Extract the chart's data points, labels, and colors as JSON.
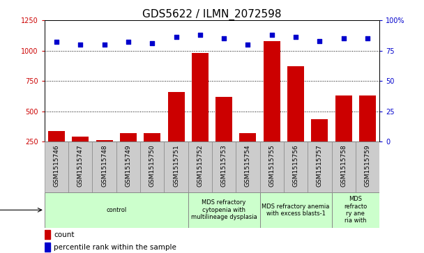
{
  "title": "GDS5622 / ILMN_2072598",
  "samples": [
    "GSM1515746",
    "GSM1515747",
    "GSM1515748",
    "GSM1515749",
    "GSM1515750",
    "GSM1515751",
    "GSM1515752",
    "GSM1515753",
    "GSM1515754",
    "GSM1515755",
    "GSM1515756",
    "GSM1515757",
    "GSM1515758",
    "GSM1515759"
  ],
  "counts": [
    340,
    290,
    265,
    320,
    320,
    660,
    980,
    620,
    320,
    1080,
    870,
    435,
    630,
    630
  ],
  "percentiles": [
    82,
    80,
    80,
    82,
    81,
    86,
    88,
    85,
    80,
    88,
    86,
    83,
    85,
    85
  ],
  "ylim_left": [
    250,
    1250
  ],
  "ylim_right": [
    0,
    100
  ],
  "yticks_left": [
    250,
    500,
    750,
    1000,
    1250
  ],
  "yticks_right": [
    0,
    25,
    50,
    75,
    100
  ],
  "bar_color": "#cc0000",
  "scatter_color": "#0000cc",
  "sample_bg_color": "#cccccc",
  "disease_groups": [
    {
      "label": "control",
      "start": 0,
      "end": 6,
      "color": "#ccffcc"
    },
    {
      "label": "MDS refractory\ncytopenia with\nmultilineage dysplasia",
      "start": 6,
      "end": 9,
      "color": "#ccffcc"
    },
    {
      "label": "MDS refractory anemia\nwith excess blasts-1",
      "start": 9,
      "end": 12,
      "color": "#ccffcc"
    },
    {
      "label": "MDS\nrefracto\nry ane\nria with",
      "start": 12,
      "end": 14,
      "color": "#ccffcc"
    }
  ],
  "title_fontsize": 11,
  "tick_fontsize": 7,
  "legend_fontsize": 7.5,
  "disease_label_fontsize": 6.0,
  "sample_label_fontsize": 6.5
}
